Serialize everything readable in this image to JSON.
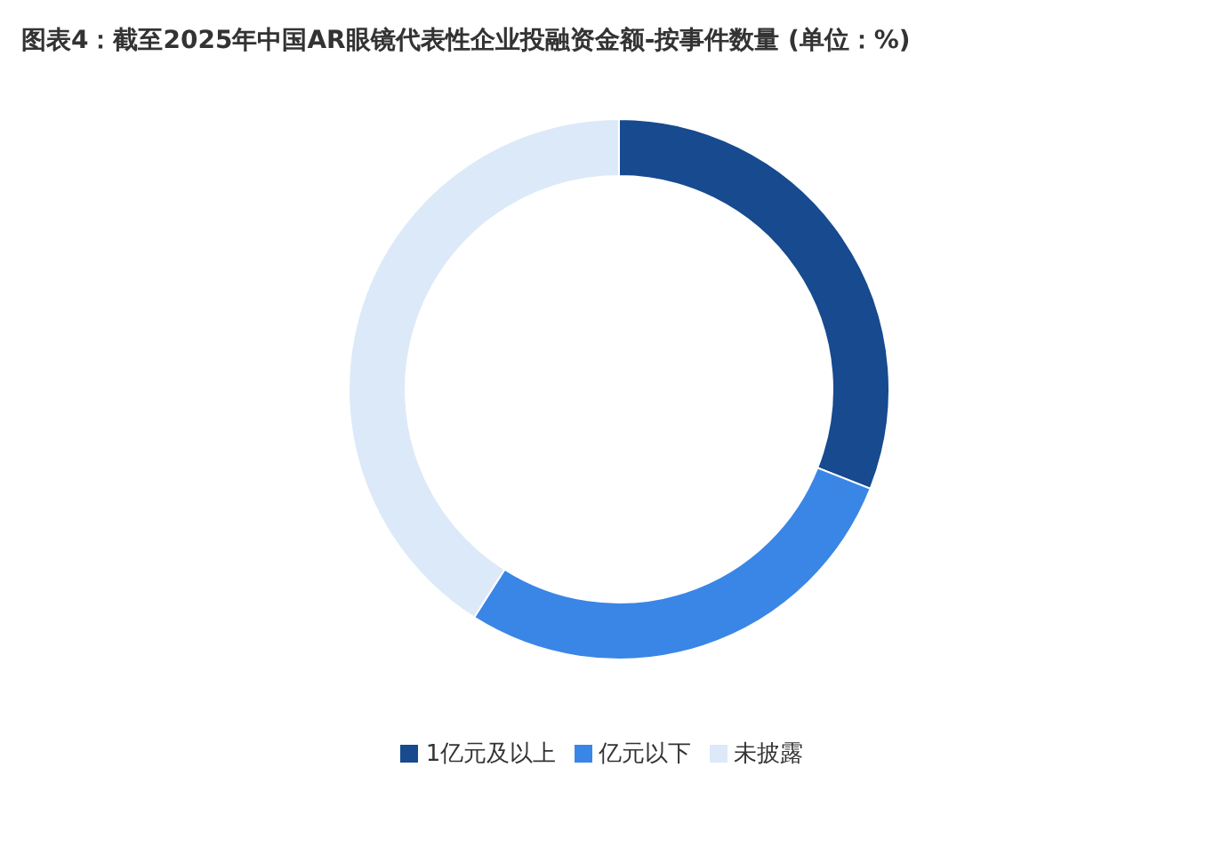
{
  "chart_data": {
    "type": "donut",
    "title": "图表4：截至2025年中国AR眼镜代表性企业投融资金额-按事件数量 (单位：%)",
    "categories": [
      "1亿元及以上",
      "亿元以下",
      "未披露"
    ],
    "values": [
      31,
      28,
      41
    ],
    "colors": [
      "#174a8f",
      "#3a86e6",
      "#dce9f8"
    ],
    "legend": "bottom"
  }
}
